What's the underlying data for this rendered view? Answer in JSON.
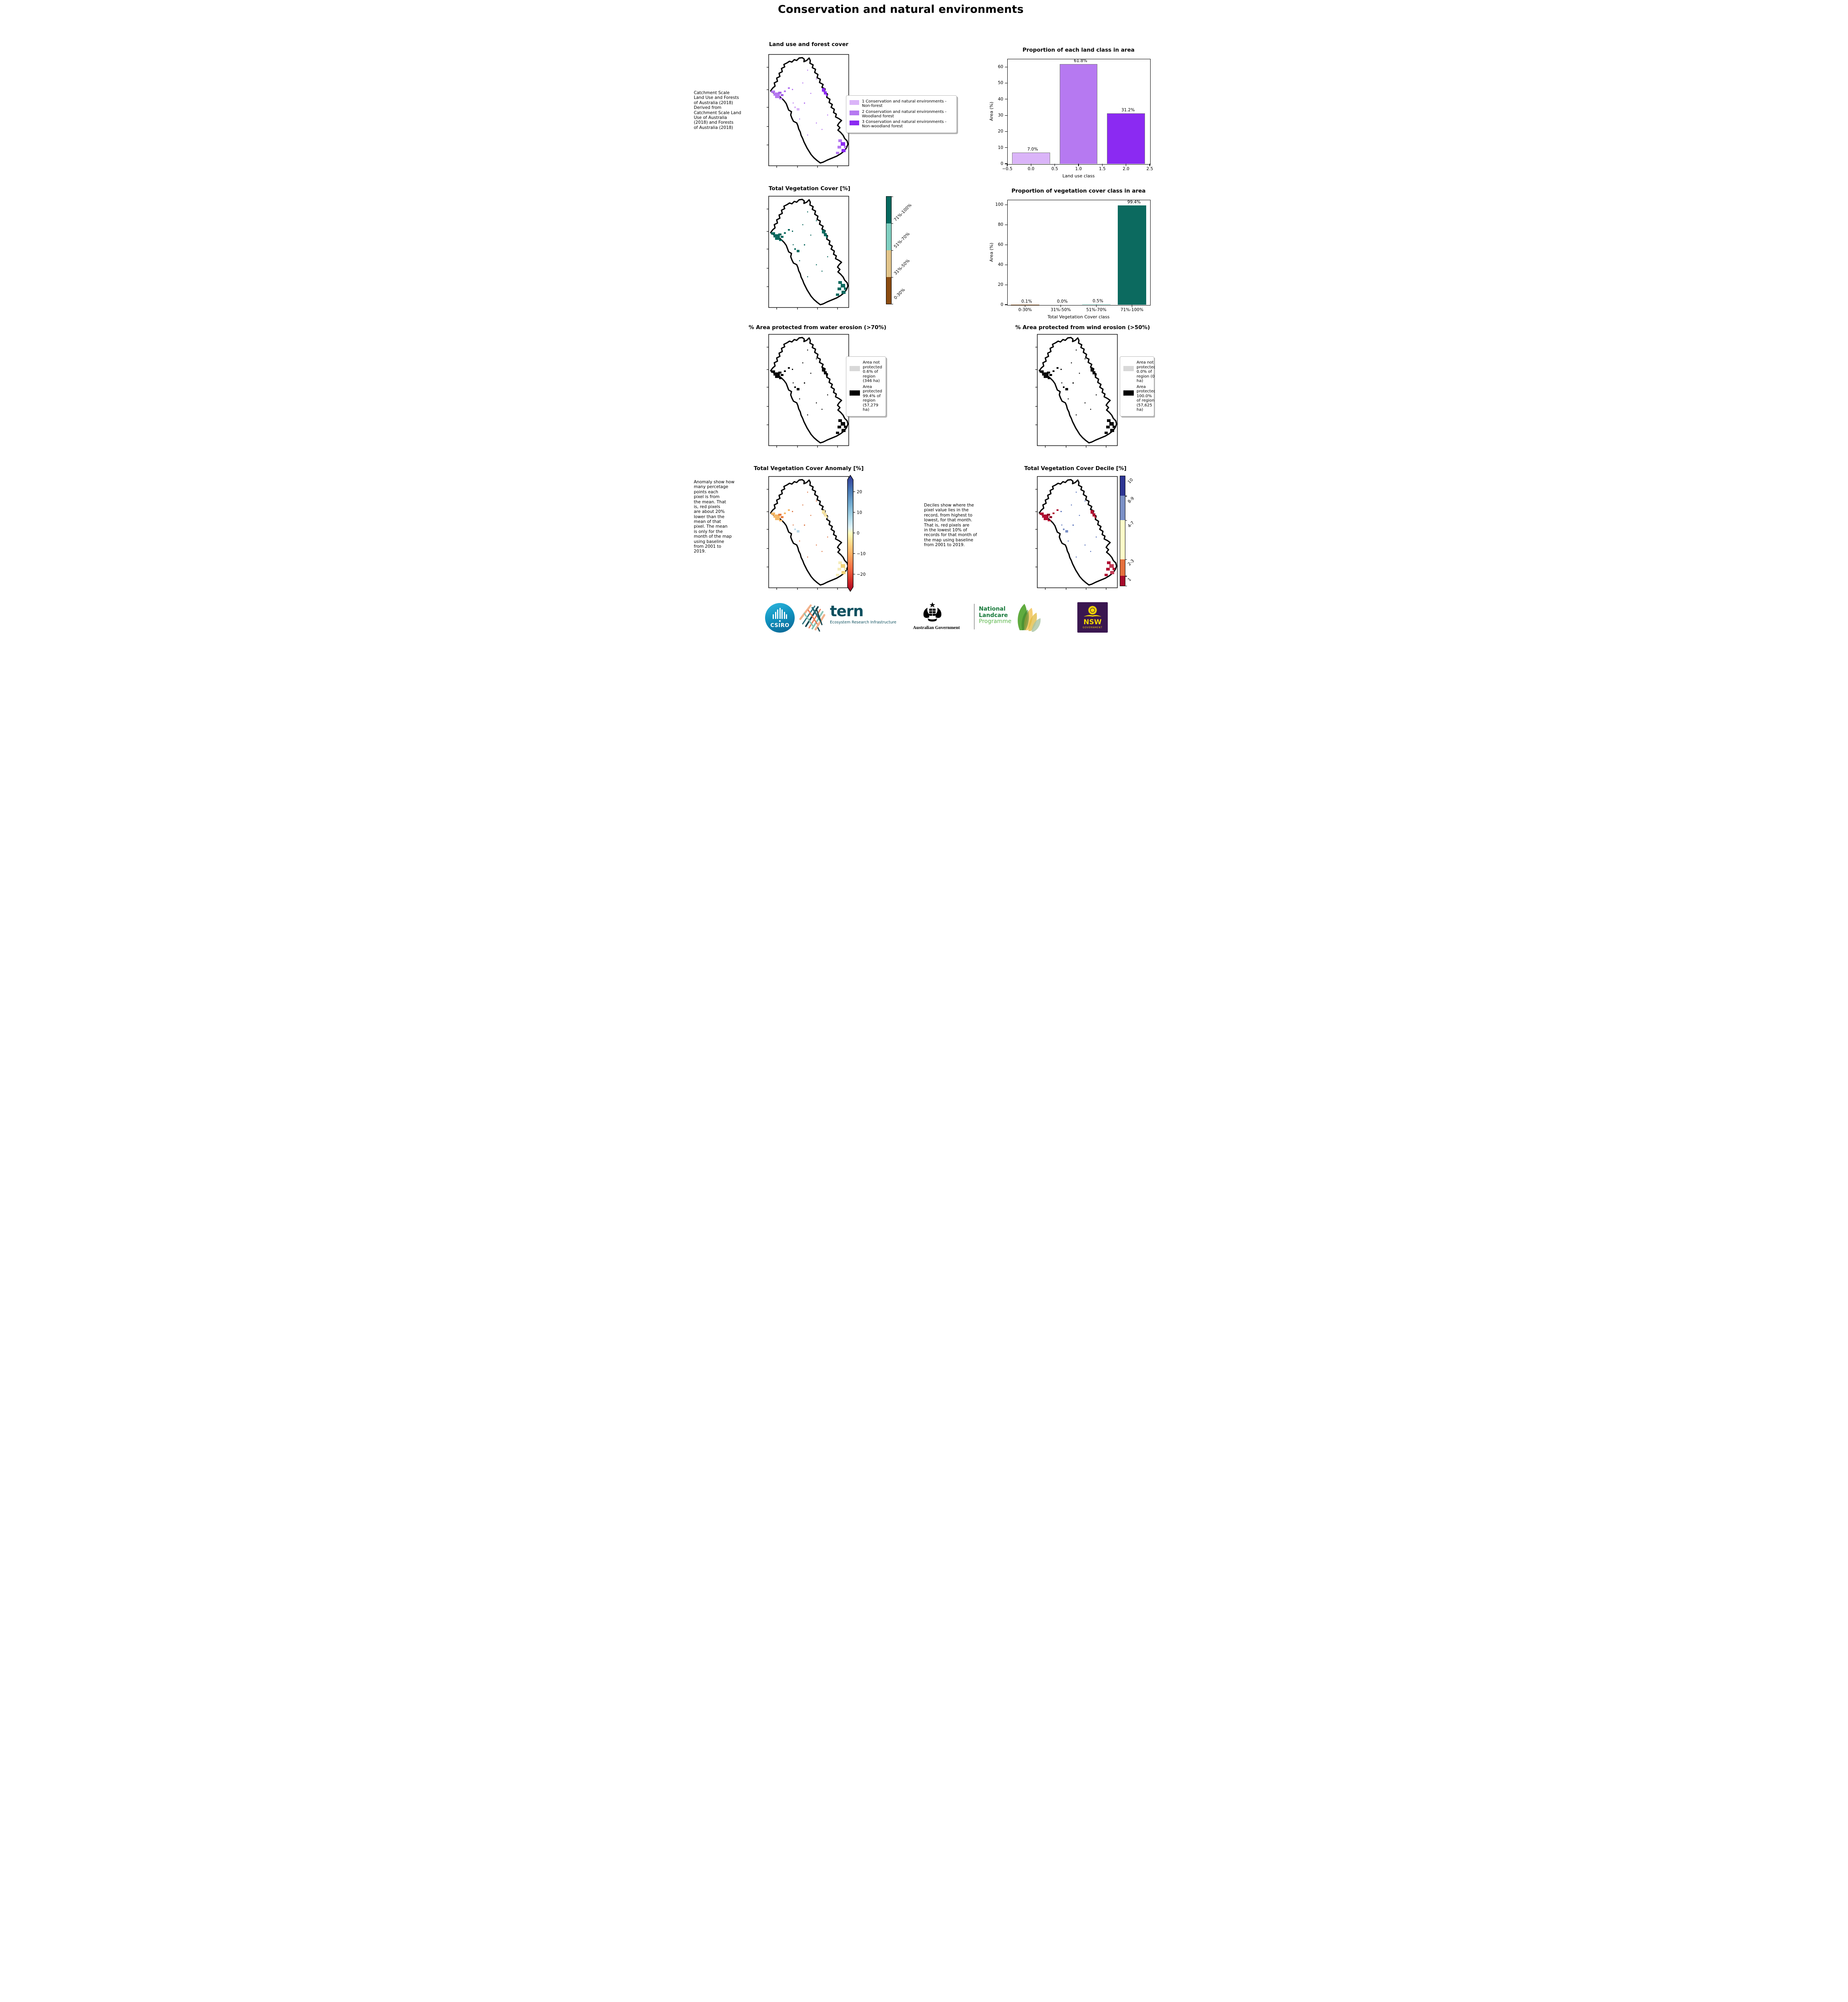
{
  "page_title": "Conservation and natural environments",
  "row1": {
    "map_title": "Land use and forest cover",
    "side_note": " Catchment Scale\nLand Use and Forests\nof Australia (2018)\nDerived from\nCatchment Scale Land\nUse of Australia\n(2018) and Forests\nof Australia (2018)",
    "legend": {
      "items": [
        {
          "label": "1 Conservation and natural environments - Non-forest",
          "color": "#dab4f8"
        },
        {
          "label": "2 Conservation and natural environments - Woodland forest",
          "color": "#b679f1"
        },
        {
          "label": "3 Conservation and natural environments - Non-woodland forest",
          "color": "#8b2af2"
        }
      ]
    }
  },
  "row2": {
    "map_title": "Total Vegetation Cover [%]",
    "colorbar": {
      "labels": [
        "71%-100%",
        "51%-70%",
        "31%-50%",
        "0-30%"
      ],
      "colors": [
        "#06695f",
        "#7fcfc0",
        "#e2c489",
        "#8a4b10"
      ]
    }
  },
  "row3": {
    "left": {
      "title": "% Area protected from water erosion (>70%)",
      "legend": [
        {
          "label": "Area not protected 0.6% of region (346 ha)",
          "color": "#d8d8d8"
        },
        {
          "label": "Area protected 99.4% of region (57,279 ha)",
          "color": "#000000"
        }
      ]
    },
    "right": {
      "title": "% Area protected from wind erosion (>50%)",
      "legend": [
        {
          "label": "Area not protected 0.0% of region (0 ha)",
          "color": "#d8d8d8"
        },
        {
          "label": "Area protected 100.0% of region (57,625 ha)",
          "color": "#000000"
        }
      ]
    }
  },
  "row4": {
    "left_title": "Total Vegetation Cover Anomaly [%]",
    "right_title": "Total Vegetation Cover Decile [%]",
    "anomaly_note": "Anomaly show how\nmany percetage\npoints each\npixel is from\nthe mean. That\nis, red pixels\nare about 20%\nlower than the\nmean of that\npixel. The mean\nis only for the\nmonth of the map\nusing baseline\nfrom 2001 to\n2019.",
    "decile_note": "Deciles show where the\npixel value lies in the\nrecord, from highest to\nlowest, for that month.\nThat is, red pixels are\nin the lowest 10% of\nrecords for that month of\nthe map using baseline\nfrom 2001 to 2019.",
    "anomaly_cb_ticks": [
      "20",
      "10",
      "0",
      "−10",
      "−20"
    ],
    "decile_cb": {
      "labels": [
        "10",
        "8-9",
        "4-7",
        "2-3",
        "1"
      ],
      "colors": [
        "#2e3693",
        "#7b90c6",
        "#fdfcc8",
        "#e4703e",
        "#a60b2c"
      ]
    }
  },
  "charts": [
    {
      "ymax": 65,
      "edge": "#7a7a7a",
      "yticks": [
        {
          "f": 0,
          "t": "0"
        },
        {
          "f": 0.1538,
          "t": "10"
        },
        {
          "f": 0.3077,
          "t": "20"
        },
        {
          "f": 0.4615,
          "t": "30"
        },
        {
          "f": 0.6154,
          "t": "40"
        },
        {
          "f": 0.7692,
          "t": "50"
        },
        {
          "f": 0.9231,
          "t": "60"
        }
      ],
      "xticks": [
        {
          "f": 0,
          "t": "−0.5"
        },
        {
          "f": 0.1667,
          "t": "0.0"
        },
        {
          "f": 0.3333,
          "t": "0.5"
        },
        {
          "f": 0.5,
          "t": "1.0"
        },
        {
          "f": 0.6667,
          "t": "1.5"
        },
        {
          "f": 0.8333,
          "t": "2.0"
        },
        {
          "f": 1,
          "t": "2.5"
        }
      ],
      "bars": [
        {
          "f": 0.1667,
          "w": 0.2667,
          "c": "#dab4f8"
        },
        {
          "f": 0.5,
          "w": 0.2667,
          "c": "#b679f1"
        },
        {
          "f": 0.8333,
          "w": 0.2667,
          "c": "#8b2af2"
        }
      ]
    },
    {
      "ymax": 105,
      "edge": null,
      "yticks": [
        {
          "f": 0,
          "t": "0"
        },
        {
          "f": 0.1905,
          "t": "20"
        },
        {
          "f": 0.381,
          "t": "40"
        },
        {
          "f": 0.5714,
          "t": "60"
        },
        {
          "f": 0.7619,
          "t": "80"
        },
        {
          "f": 0.9524,
          "t": "100"
        }
      ],
      "xticks": [
        {
          "f": 0.125,
          "t": "0-30%"
        },
        {
          "f": 0.375,
          "t": "31%-50%"
        },
        {
          "f": 0.625,
          "t": "51%-70%"
        },
        {
          "f": 0.875,
          "t": "71%-100%"
        }
      ],
      "bars": [
        {
          "f": 0.125,
          "w": 0.2,
          "c": "#8a4b10"
        },
        {
          "f": 0.375,
          "w": 0.2,
          "c": "#e2c489"
        },
        {
          "f": 0.625,
          "w": 0.2,
          "c": "#7fcfc0"
        },
        {
          "f": 0.875,
          "w": 0.2,
          "c": "#0c6a5f"
        }
      ]
    }
  ],
  "chart_data": [
    {
      "type": "bar",
      "title": "Proportion of each land class in area",
      "xlabel": "Land use class",
      "ylabel": "Area (%)",
      "x": [
        0,
        1,
        2
      ],
      "values": [
        7.0,
        61.8,
        31.2
      ],
      "bar_labels": [
        "7.0%",
        "61.8%",
        "31.2%"
      ],
      "xticks": [
        -0.5,
        0.0,
        0.5,
        1.0,
        1.5,
        2.0,
        2.5
      ],
      "ylim": [
        0,
        65
      ],
      "grid": false,
      "colors": [
        "#dab4f8",
        "#b679f1",
        "#8b2af2"
      ]
    },
    {
      "type": "bar",
      "title": "Proportion of vegetation cover class in area",
      "xlabel": "Total Vegetation Cover class",
      "ylabel": "Area (%)",
      "categories": [
        "0-30%",
        "31%-50%",
        "51%-70%",
        "71%-100%"
      ],
      "values": [
        0.1,
        0.0,
        0.5,
        99.4
      ],
      "bar_labels": [
        "0.1%",
        "0.0%",
        "0.5%",
        "99.4%"
      ],
      "ylim": [
        0,
        105
      ],
      "grid": false,
      "colors": [
        "#8a4b10",
        "#e2c489",
        "#7fcfc0",
        "#0c6a5f"
      ]
    }
  ],
  "footer": {
    "csiro_label": "CSIRO",
    "tern_label": "tern",
    "tern_sub": "Ecosystem Research Infrastructure",
    "aus_gov": "Australian Government",
    "nlp_line1": "National",
    "nlp_line2": "Landcare",
    "nlp_line3": "Programme",
    "nsw_label": "NSW",
    "nsw_sub": "GOVERNMENT"
  }
}
